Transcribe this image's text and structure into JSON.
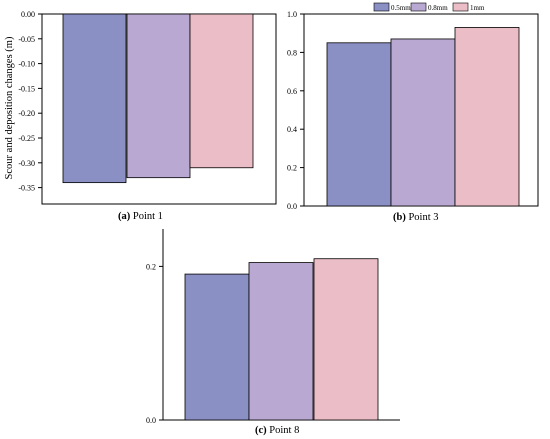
{
  "colors": {
    "s1": "#8a8fc4",
    "s2": "#b9a9d2",
    "s3": "#ebbdc7",
    "edge": "#000000"
  },
  "chart_data": [
    {
      "type": "bar",
      "panel_label": "(a)",
      "caption": "Point 1",
      "ylabel": "Scour and deposition changes (m)",
      "ylim": [
        -0.375,
        0.0
      ],
      "yticks": [
        0.0,
        -0.05,
        -0.1,
        -0.15,
        -0.2,
        -0.25,
        -0.3,
        -0.35
      ],
      "ytick_labels": [
        "0.00",
        "-0.05",
        "-0.10",
        "-0.15",
        "-0.20",
        "-0.25",
        "-0.30",
        "-0.35"
      ],
      "series": [
        {
          "name": "0.5mm",
          "values": [
            -0.34
          ]
        },
        {
          "name": "0.8mm",
          "values": [
            -0.33
          ]
        },
        {
          "name": "1mm",
          "values": [
            -0.31
          ]
        }
      ]
    },
    {
      "type": "bar",
      "panel_label": "(b)",
      "caption": "Point 3",
      "ylim": [
        0.0,
        1.0
      ],
      "yticks": [
        0.0,
        0.2,
        0.4,
        0.6,
        0.8,
        1.0
      ],
      "ytick_labels": [
        "0.0",
        "0.2",
        "0.4",
        "0.6",
        "0.8",
        "1.0"
      ],
      "legend": {
        "position": "top",
        "entries": [
          "0.5mm",
          "0.8mm",
          "1mm"
        ]
      },
      "series": [
        {
          "name": "0.5mm",
          "values": [
            0.85
          ]
        },
        {
          "name": "0.8mm",
          "values": [
            0.87
          ]
        },
        {
          "name": "1mm",
          "values": [
            0.93
          ]
        }
      ]
    },
    {
      "type": "bar",
      "panel_label": "(c)",
      "caption": "Point 8",
      "ylim": [
        0.0,
        0.25
      ],
      "yticks": [
        0.0,
        0.2
      ],
      "ytick_labels": [
        "0.0",
        "0.2"
      ],
      "series": [
        {
          "name": "0.5mm",
          "values": [
            0.19
          ]
        },
        {
          "name": "0.8mm",
          "values": [
            0.205
          ]
        },
        {
          "name": "1mm",
          "values": [
            0.21
          ]
        }
      ]
    }
  ]
}
